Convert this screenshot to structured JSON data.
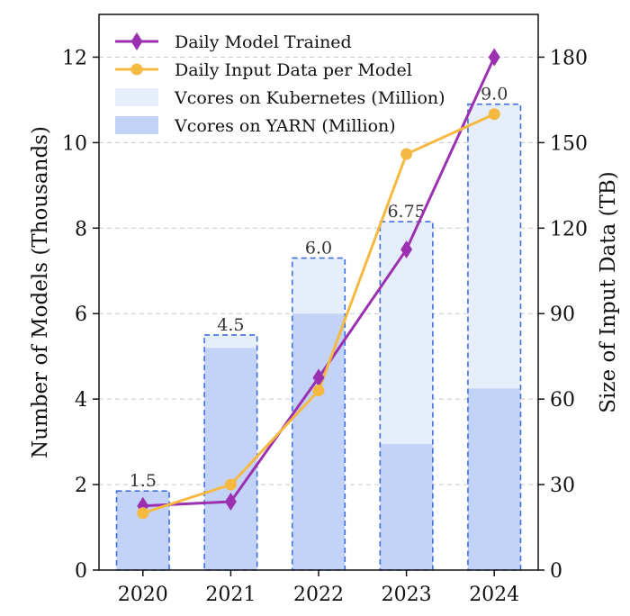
{
  "chart_data": {
    "type": "bar",
    "categories": [
      "2020",
      "2021",
      "2022",
      "2023",
      "2024"
    ],
    "xlabel": "",
    "ylabel": "Number of Models (Thousands)",
    "y2label": "Size of Input Data (TB)",
    "ylim": [
      0,
      13
    ],
    "y2lim": [
      0,
      195
    ],
    "yticks": [
      0,
      2,
      4,
      6,
      8,
      10,
      12
    ],
    "y2ticks": [
      0,
      30,
      60,
      90,
      120,
      150,
      180
    ],
    "grid": "horizontal-dashed",
    "legend": "top-left",
    "series": [
      {
        "name": "Daily Model Trained",
        "type": "line",
        "axis": "left",
        "color": "#9b30b0",
        "marker": "diamond",
        "values": [
          1.5,
          1.6,
          4.5,
          7.5,
          12.0
        ]
      },
      {
        "name": "Daily Input Data per Model",
        "type": "line",
        "axis": "right",
        "color": "#f5b942",
        "marker": "circle",
        "values": [
          20,
          30,
          63,
          146,
          160
        ]
      },
      {
        "name": "Vcores on Kubernetes (Million)",
        "type": "bar",
        "axis": "left",
        "color": "#e6edfb",
        "values": [
          0,
          0.3,
          1.3,
          5.2,
          6.65
        ]
      },
      {
        "name": "Vcores on YARN (Million)",
        "type": "bar",
        "axis": "left",
        "color": "#c3d2f7",
        "values": [
          1.85,
          5.2,
          6.0,
          2.95,
          4.25
        ]
      }
    ],
    "bar_labels": [
      "1.5",
      "4.5",
      "6.0",
      "6.75",
      "9.0"
    ],
    "bar_outline_color": "#3f6fe0"
  }
}
